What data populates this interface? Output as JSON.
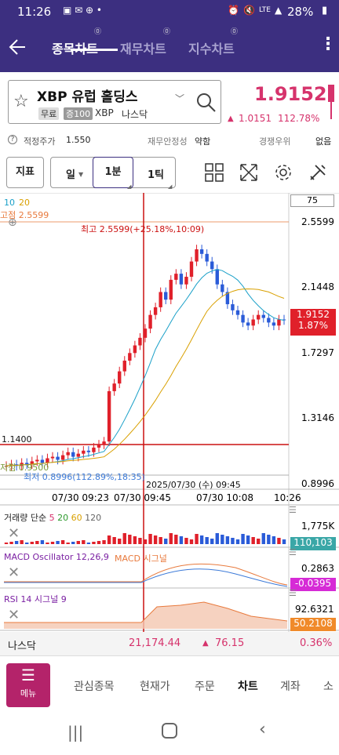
{
  "status": {
    "time": "11:26",
    "lte": "LTE",
    "battery": "28%"
  },
  "header": {
    "tabs": [
      "종목차트",
      "재무차트",
      "지수차트"
    ],
    "active_tab": 0
  },
  "stock": {
    "name": "XBP 유럽 홀딩스",
    "tag_free": "무료",
    "tag_margin": "증100",
    "ticker": "XBP",
    "market": "나스닥",
    "price": "1.9152",
    "change": "1.0151",
    "change_pct": "112.78%"
  },
  "info": {
    "fair_price_label": "적정주가",
    "fair_price": "1.550",
    "fin_stability_label": "재무안정성",
    "fin_stability": "약함",
    "competition_label": "경쟁우위",
    "competition": "없음"
  },
  "toolbar": {
    "indicator": "지표",
    "day": "일",
    "minute": "1분",
    "tick": "1틱"
  },
  "chart": {
    "ma_label_10": "10",
    "ma_label_20": "20",
    "high_left": "고점 2.5599",
    "high_annotation": "최고 2.5599(+25.18%,10:09)",
    "low_left": "저점 0.9500",
    "low_annotation": "최저 0.8996(112.89%,18:35)",
    "crosshair_time": "2025/07/30 (수) 09:45",
    "ref_price": "1.1400",
    "zoom_value": "75",
    "price_ticks": [
      "2.5599",
      "2.1448",
      "1.7297",
      "1.3146",
      "0.8996"
    ],
    "price_box": "1.9152",
    "price_box_pct": "1.87%",
    "time_ticks": [
      "07/30 09:23",
      "07/30 09:45",
      "07/30 10:08",
      "10:26"
    ],
    "volume_label_prefix": "거래량",
    "volume_label_kind": "단순",
    "volume_ma": [
      "5",
      "20",
      "60",
      "120"
    ],
    "volume_top": "1,775K",
    "volume_box": "110,103",
    "macd_label": "MACD Oscillator 12,26,9",
    "macd_signal_label": "MACD 시그널",
    "macd_top": "0.2863",
    "macd_box": "-0.0395",
    "rsi_label": "RSI 14 시그널 9",
    "rsi_top": "92.6321",
    "rsi_box": "50.2108"
  },
  "chart_data": {
    "type": "candlestick",
    "y_range": [
      0.8996,
      2.5599
    ],
    "time_ticks": [
      "07/30 09:23",
      "07/30 09:45",
      "07/30 10:08",
      "10:26"
    ],
    "closes": [
      0.96,
      0.97,
      0.96,
      0.98,
      0.97,
      0.99,
      1.0,
      0.98,
      1.01,
      1.02,
      1.0,
      1.03,
      1.05,
      1.02,
      1.04,
      1.06,
      1.05,
      1.08,
      1.1,
      1.12,
      1.45,
      1.5,
      1.58,
      1.65,
      1.7,
      1.75,
      1.8,
      1.86,
      1.95,
      2.0,
      2.1,
      2.05,
      2.18,
      2.22,
      2.15,
      2.2,
      2.3,
      2.38,
      2.35,
      2.3,
      2.25,
      2.15,
      2.1,
      2.02,
      1.98,
      1.95,
      1.9,
      1.88,
      1.92,
      1.95,
      1.93,
      1.9,
      1.88,
      1.92,
      1.9152
    ],
    "last_price": 1.9152,
    "high": 2.5599,
    "low": 0.8996
  },
  "nasdaq": {
    "name": "나스닥",
    "value": "21,174.44",
    "change": "76.15",
    "pct": "0.36%"
  },
  "bottomnav": {
    "menu": "메뉴",
    "items": [
      "관심종목",
      "현재가",
      "주문",
      "차트",
      "계좌",
      "소"
    ]
  }
}
